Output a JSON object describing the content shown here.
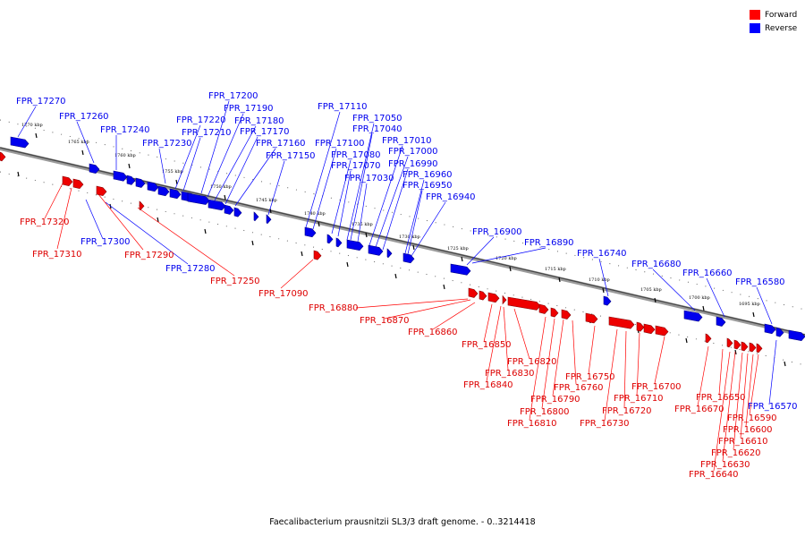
{
  "legend": [
    {
      "label": "Forward",
      "color": "#ff0000"
    },
    {
      "label": "Reverse",
      "color": "#0000ff"
    }
  ],
  "footer": "Faecalibacterium prausnitzii SL3/3 draft genome. - 0..3214418",
  "scale_labels": [
    "1770 kbp",
    "1765 kbp",
    "1760 kbp",
    "1755 kbp",
    "1750 kbp",
    "1745 kbp",
    "1740 kbp",
    "1735 kbp",
    "1730 kbp",
    "1725 kbp",
    "1720 kbp",
    "1715 kbp",
    "1710 kbp",
    "1705 kbp",
    "1700 kbp",
    "1695 kbp"
  ],
  "forward_labels": [
    "FPR_17320",
    "FPR_17310",
    "FPR_17290",
    "FPR_17250",
    "FPR_17090",
    "FPR_16880",
    "FPR_16870",
    "FPR_16860",
    "FPR_16850",
    "FPR_16840",
    "FPR_16830",
    "FPR_16820",
    "FPR_16810",
    "FPR_16800",
    "FPR_16790",
    "FPR_16760",
    "FPR_16750",
    "FPR_16730",
    "FPR_16720",
    "FPR_16710",
    "FPR_16700",
    "FPR_16670",
    "FPR_16650",
    "FPR_16640",
    "FPR_16630",
    "FPR_16620",
    "FPR_16610",
    "FPR_16600",
    "FPR_16590"
  ],
  "reverse_labels": [
    "FPR_17270",
    "FPR_17260",
    "FPR_17240",
    "FPR_17230",
    "FPR_17220",
    "FPR_17210",
    "FPR_17200",
    "FPR_17190",
    "FPR_17180",
    "FPR_17170",
    "FPR_17160",
    "FPR_17150",
    "FPR_17300",
    "FPR_17280",
    "FPR_17110",
    "FPR_17100",
    "FPR_17080",
    "FPR_17070",
    "FPR_17050",
    "FPR_17040",
    "FPR_17030",
    "FPR_17010",
    "FPR_17000",
    "FPR_16990",
    "FPR_16960",
    "FPR_16950",
    "FPR_16940",
    "FPR_16900",
    "FPR_16890",
    "FPR_16740",
    "FPR_16680",
    "FPR_16660",
    "FPR_16580",
    "FPR_16570"
  ]
}
